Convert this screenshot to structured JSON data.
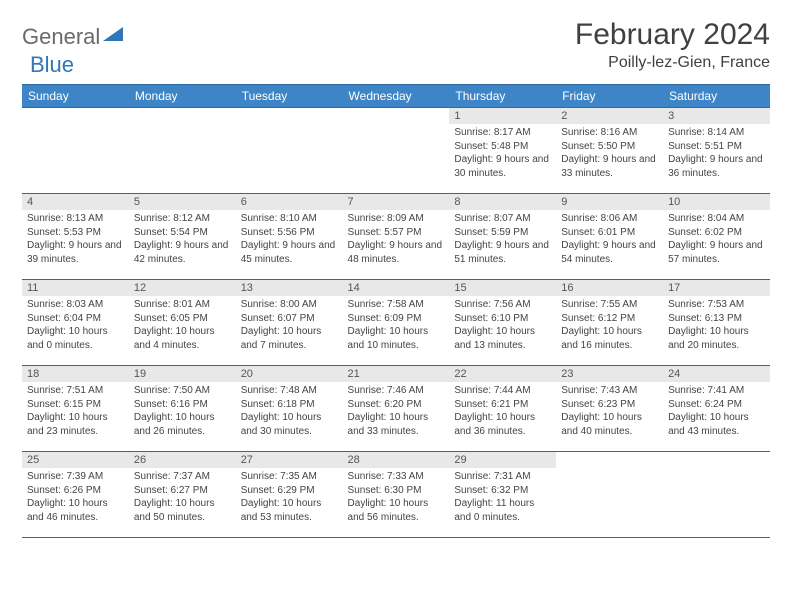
{
  "logo": {
    "general": "General",
    "blue": "Blue"
  },
  "title": "February 2024",
  "location": "Poilly-lez-Gien, France",
  "colors": {
    "header_bg": "#3d85c6",
    "header_text": "#ffffff",
    "border": "#2f6a9e",
    "daynum_bg": "#e8e8e8",
    "text": "#404040",
    "logo_gray": "#6a6a6a",
    "logo_blue": "#2f77b8"
  },
  "day_headers": [
    "Sunday",
    "Monday",
    "Tuesday",
    "Wednesday",
    "Thursday",
    "Friday",
    "Saturday"
  ],
  "weeks": [
    [
      null,
      null,
      null,
      null,
      {
        "n": "1",
        "sr": "8:17 AM",
        "ss": "5:48 PM",
        "dl": "9 hours and 30 minutes."
      },
      {
        "n": "2",
        "sr": "8:16 AM",
        "ss": "5:50 PM",
        "dl": "9 hours and 33 minutes."
      },
      {
        "n": "3",
        "sr": "8:14 AM",
        "ss": "5:51 PM",
        "dl": "9 hours and 36 minutes."
      }
    ],
    [
      {
        "n": "4",
        "sr": "8:13 AM",
        "ss": "5:53 PM",
        "dl": "9 hours and 39 minutes."
      },
      {
        "n": "5",
        "sr": "8:12 AM",
        "ss": "5:54 PM",
        "dl": "9 hours and 42 minutes."
      },
      {
        "n": "6",
        "sr": "8:10 AM",
        "ss": "5:56 PM",
        "dl": "9 hours and 45 minutes."
      },
      {
        "n": "7",
        "sr": "8:09 AM",
        "ss": "5:57 PM",
        "dl": "9 hours and 48 minutes."
      },
      {
        "n": "8",
        "sr": "8:07 AM",
        "ss": "5:59 PM",
        "dl": "9 hours and 51 minutes."
      },
      {
        "n": "9",
        "sr": "8:06 AM",
        "ss": "6:01 PM",
        "dl": "9 hours and 54 minutes."
      },
      {
        "n": "10",
        "sr": "8:04 AM",
        "ss": "6:02 PM",
        "dl": "9 hours and 57 minutes."
      }
    ],
    [
      {
        "n": "11",
        "sr": "8:03 AM",
        "ss": "6:04 PM",
        "dl": "10 hours and 0 minutes."
      },
      {
        "n": "12",
        "sr": "8:01 AM",
        "ss": "6:05 PM",
        "dl": "10 hours and 4 minutes."
      },
      {
        "n": "13",
        "sr": "8:00 AM",
        "ss": "6:07 PM",
        "dl": "10 hours and 7 minutes."
      },
      {
        "n": "14",
        "sr": "7:58 AM",
        "ss": "6:09 PM",
        "dl": "10 hours and 10 minutes."
      },
      {
        "n": "15",
        "sr": "7:56 AM",
        "ss": "6:10 PM",
        "dl": "10 hours and 13 minutes."
      },
      {
        "n": "16",
        "sr": "7:55 AM",
        "ss": "6:12 PM",
        "dl": "10 hours and 16 minutes."
      },
      {
        "n": "17",
        "sr": "7:53 AM",
        "ss": "6:13 PM",
        "dl": "10 hours and 20 minutes."
      }
    ],
    [
      {
        "n": "18",
        "sr": "7:51 AM",
        "ss": "6:15 PM",
        "dl": "10 hours and 23 minutes."
      },
      {
        "n": "19",
        "sr": "7:50 AM",
        "ss": "6:16 PM",
        "dl": "10 hours and 26 minutes."
      },
      {
        "n": "20",
        "sr": "7:48 AM",
        "ss": "6:18 PM",
        "dl": "10 hours and 30 minutes."
      },
      {
        "n": "21",
        "sr": "7:46 AM",
        "ss": "6:20 PM",
        "dl": "10 hours and 33 minutes."
      },
      {
        "n": "22",
        "sr": "7:44 AM",
        "ss": "6:21 PM",
        "dl": "10 hours and 36 minutes."
      },
      {
        "n": "23",
        "sr": "7:43 AM",
        "ss": "6:23 PM",
        "dl": "10 hours and 40 minutes."
      },
      {
        "n": "24",
        "sr": "7:41 AM",
        "ss": "6:24 PM",
        "dl": "10 hours and 43 minutes."
      }
    ],
    [
      {
        "n": "25",
        "sr": "7:39 AM",
        "ss": "6:26 PM",
        "dl": "10 hours and 46 minutes."
      },
      {
        "n": "26",
        "sr": "7:37 AM",
        "ss": "6:27 PM",
        "dl": "10 hours and 50 minutes."
      },
      {
        "n": "27",
        "sr": "7:35 AM",
        "ss": "6:29 PM",
        "dl": "10 hours and 53 minutes."
      },
      {
        "n": "28",
        "sr": "7:33 AM",
        "ss": "6:30 PM",
        "dl": "10 hours and 56 minutes."
      },
      {
        "n": "29",
        "sr": "7:31 AM",
        "ss": "6:32 PM",
        "dl": "11 hours and 0 minutes."
      },
      null,
      null
    ]
  ]
}
